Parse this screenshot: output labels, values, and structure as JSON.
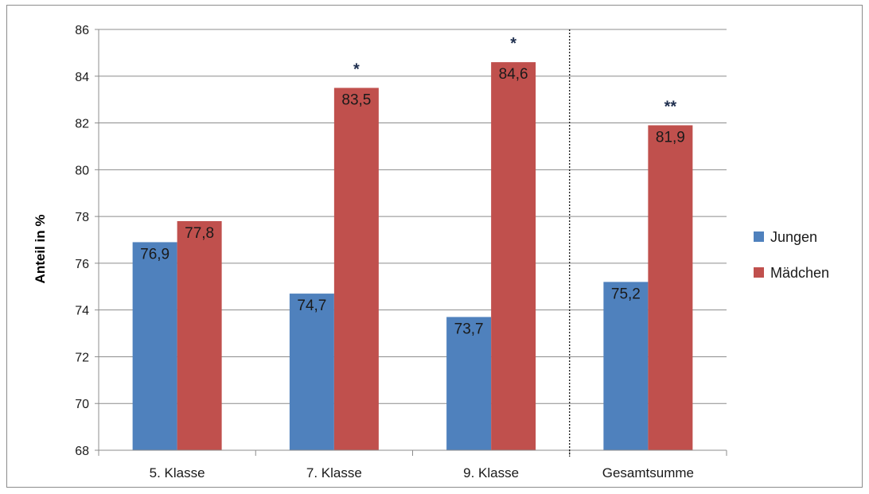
{
  "chart_data": {
    "type": "bar",
    "title": "",
    "xlabel": "",
    "ylabel": "Anteil in %",
    "ylim": [
      68,
      86
    ],
    "yticks": [
      68,
      70,
      72,
      74,
      76,
      78,
      80,
      82,
      84,
      86
    ],
    "grid": true,
    "legend_position": "right",
    "categories": [
      "5. Klasse",
      "7. Klasse",
      "9. Klasse",
      "Gesamtsumme"
    ],
    "series": [
      {
        "name": "Jungen",
        "color": "#4f81bd",
        "values": [
          76.9,
          74.7,
          73.7,
          75.2
        ],
        "labels": [
          "76,9",
          "74,7",
          "73,7",
          "75,2"
        ]
      },
      {
        "name": "Mädchen",
        "color": "#c0504d",
        "values": [
          77.8,
          83.5,
          84.6,
          81.9
        ],
        "labels": [
          "77,8",
          "83,5",
          "84,6",
          "81,9"
        ]
      }
    ],
    "significance": [
      "",
      "*",
      "*",
      "**"
    ],
    "separator_before_category": 3
  }
}
